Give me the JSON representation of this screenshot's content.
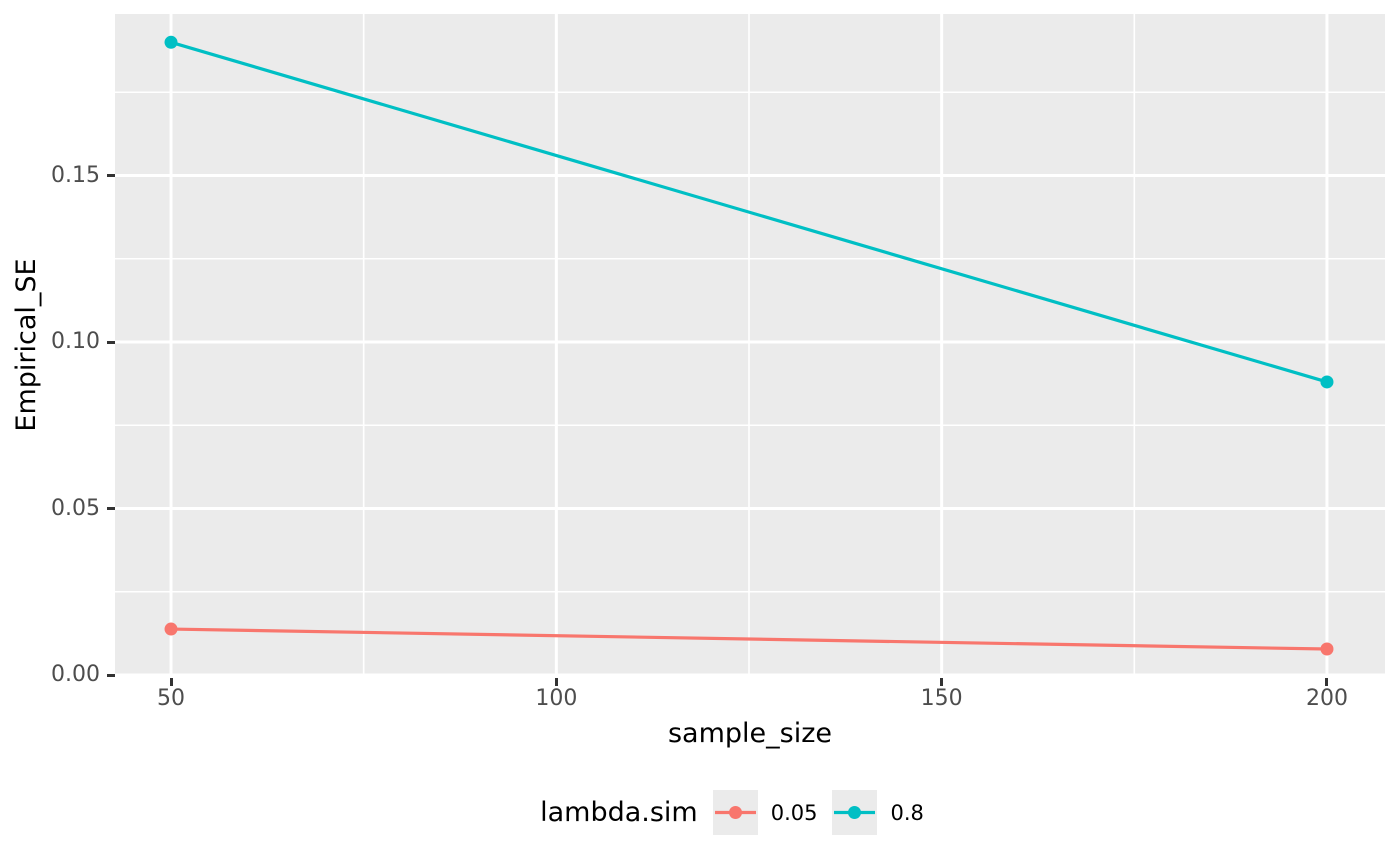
{
  "chart_data": {
    "type": "line",
    "title": "",
    "xlabel": "sample_size",
    "ylabel": "Empirical_SE",
    "x": [
      50,
      200
    ],
    "series": [
      {
        "name": "0.05",
        "color": "#F8766D",
        "values": [
          0.0138,
          0.0078
        ]
      },
      {
        "name": "0.8",
        "color": "#00BFC4",
        "values": [
          0.19,
          0.088
        ]
      }
    ],
    "x_ticks": {
      "values": [
        50,
        100,
        150,
        200
      ],
      "labels": [
        "50",
        "100",
        "150",
        "200"
      ]
    },
    "y_ticks": {
      "values": [
        0,
        0.05,
        0.1,
        0.15
      ],
      "labels": [
        "0.00",
        "0.05",
        "0.10",
        "0.15"
      ]
    },
    "x_minor": [
      75,
      125,
      175
    ],
    "y_minor": [
      0.025,
      0.075,
      0.125,
      0.175
    ],
    "xlim": [
      42.73,
      207.53
    ],
    "ylim": [
      -0.0003,
      0.1985
    ],
    "grid": true,
    "legend": {
      "title": "lambda.sim",
      "position": "bottom",
      "entries": [
        {
          "label": "0.05",
          "color": "#F8766D"
        },
        {
          "label": "0.8",
          "color": "#00BFC4"
        }
      ]
    },
    "theme": {
      "background": "#FFFFFF",
      "panel_bg": "#EBEBEB",
      "grid_color": "#FFFFFF",
      "tick_color": "#333333",
      "tick_label_color": "#4D4D4D",
      "axis_title_color": "#000000",
      "legend_key_bg": "#EBEBEB"
    }
  }
}
